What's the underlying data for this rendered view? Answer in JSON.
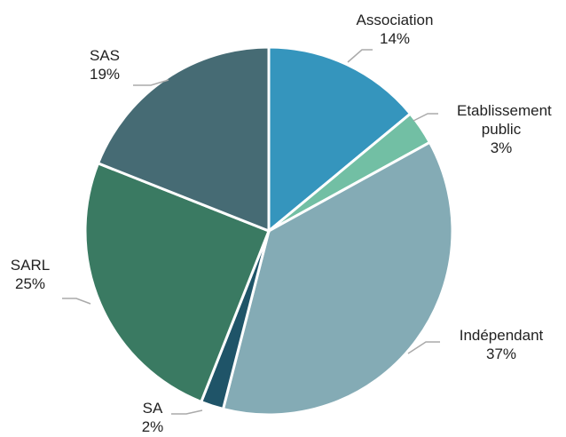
{
  "chart_data": {
    "type": "pie",
    "categories": [
      "Association",
      "Etablissement public",
      "Indépendant",
      "SA",
      "SARL",
      "SAS"
    ],
    "values": [
      14,
      3,
      37,
      2,
      25,
      19
    ],
    "value_labels": [
      "14%",
      "3%",
      "37%",
      "2%",
      "25%",
      "19%"
    ],
    "colors": [
      "#3595bd",
      "#72bfa4",
      "#84abb5",
      "#1f5468",
      "#3a7a62",
      "#466b74"
    ]
  }
}
